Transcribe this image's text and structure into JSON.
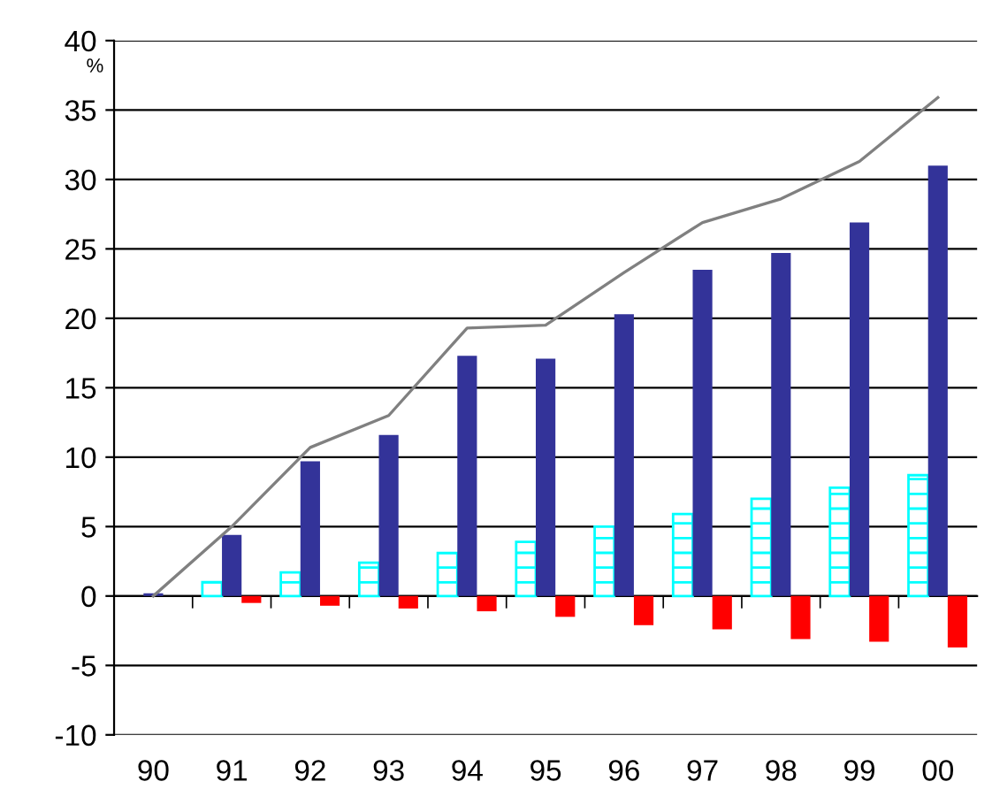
{
  "chart_data": {
    "type": "bar",
    "ylabel": "%",
    "categories": [
      "90",
      "91",
      "92",
      "93",
      "94",
      "95",
      "96",
      "97",
      "98",
      "99",
      "00"
    ],
    "series": [
      {
        "color": "#00ffff",
        "values": [
          null,
          1.0,
          1.7,
          2.4,
          3.1,
          3.9,
          5.0,
          5.9,
          7.0,
          7.8,
          8.7
        ]
      },
      {
        "color": "#333399",
        "values": [
          0.2,
          4.4,
          9.7,
          11.6,
          17.3,
          17.1,
          20.3,
          23.5,
          24.7,
          26.9,
          31.0
        ]
      },
      {
        "color": "#ff0000",
        "values": [
          null,
          -0.5,
          -0.7,
          -0.9,
          -1.1,
          -1.5,
          -2.1,
          -2.4,
          -3.1,
          -3.3,
          -3.7
        ]
      },
      {
        "type": "line",
        "color": "#808080",
        "values": [
          0,
          5.0,
          10.7,
          13.0,
          19.3,
          19.5,
          23.3,
          26.9,
          28.6,
          31.3,
          35.9
        ]
      }
    ],
    "ylim": [
      -10,
      40
    ],
    "yticks": [
      -10,
      -5,
      0,
      5,
      10,
      15,
      20,
      25,
      30,
      35,
      40
    ],
    "grid": "y",
    "legend": false
  }
}
